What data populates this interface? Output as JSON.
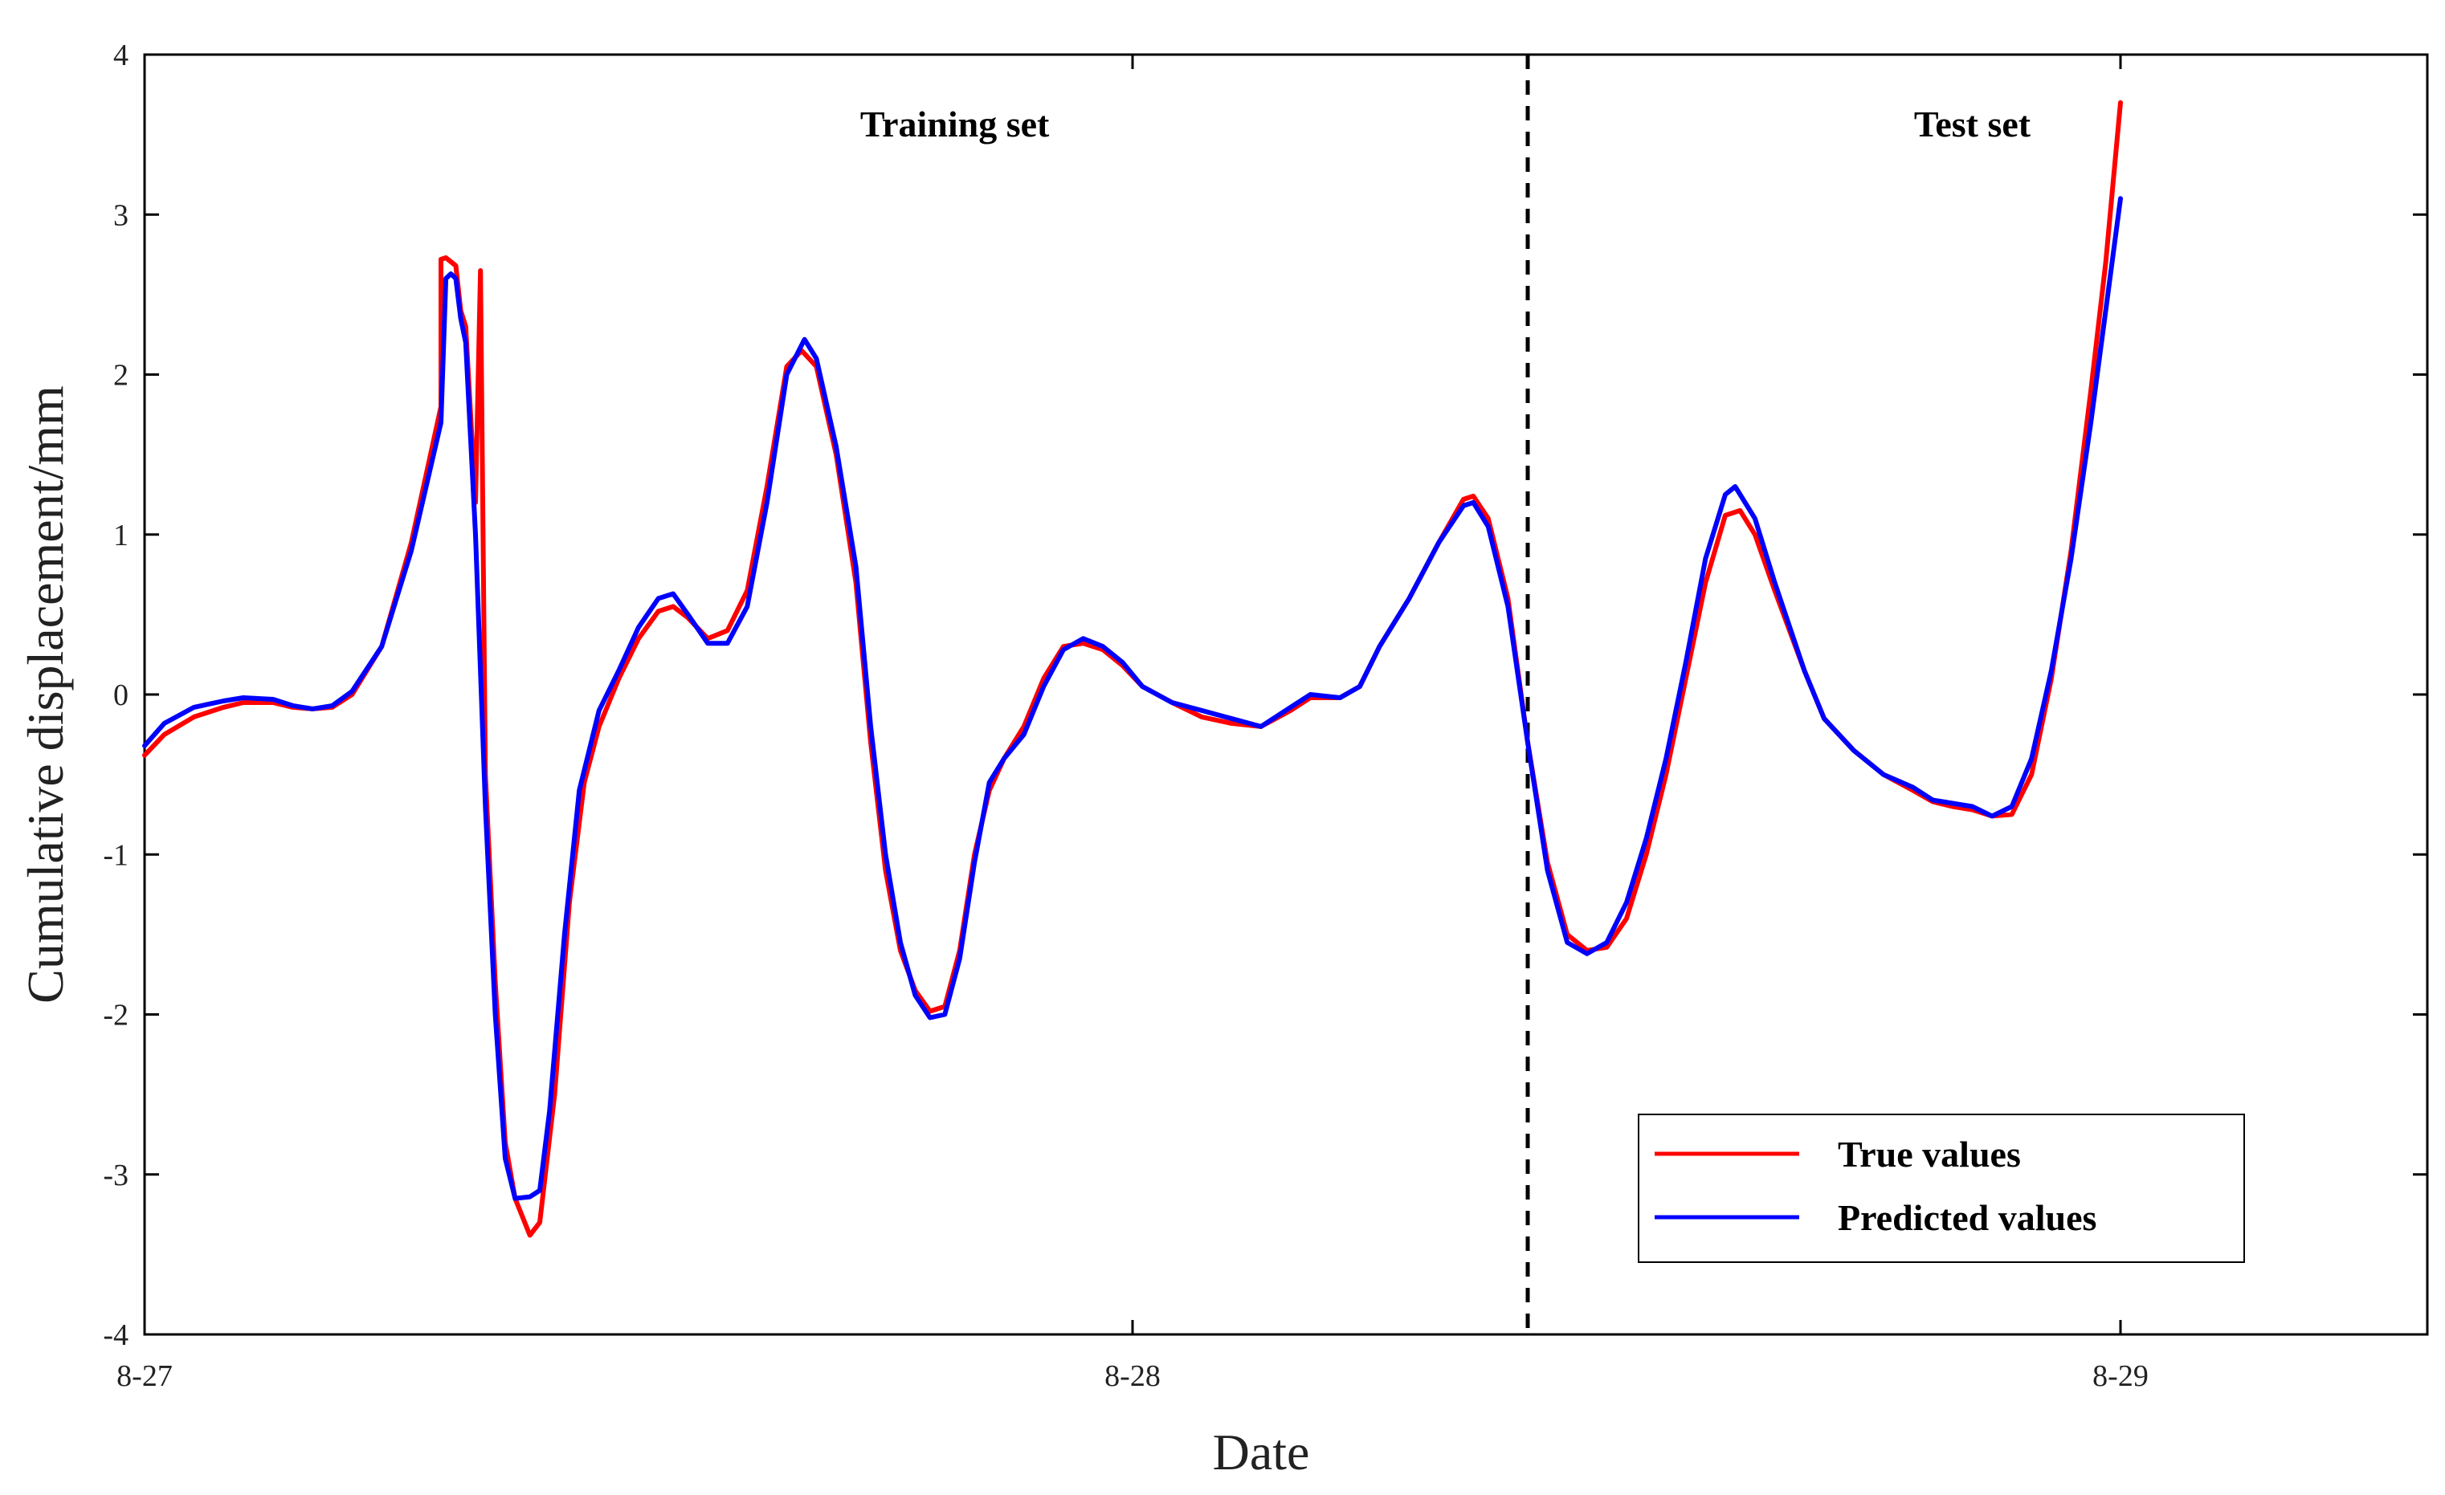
{
  "chart_data": {
    "type": "line",
    "xlabel": "Date",
    "ylabel": "Cumulative displacement/mm",
    "xlim": [
      0,
      2.3
    ],
    "ylim": [
      -4,
      4
    ],
    "x_ticks": [
      {
        "value": 0,
        "label": "8-27"
      },
      {
        "value": 1,
        "label": "8-28"
      },
      {
        "value": 2,
        "label": "8-29"
      }
    ],
    "y_ticks": [
      {
        "value": 4,
        "label": "4"
      },
      {
        "value": 3,
        "label": "3"
      },
      {
        "value": 2,
        "label": "2"
      },
      {
        "value": 1,
        "label": "1"
      },
      {
        "value": 0,
        "label": "0"
      },
      {
        "value": -1,
        "label": "-1"
      },
      {
        "value": -2,
        "label": "-2"
      },
      {
        "value": -3,
        "label": "-3"
      },
      {
        "value": -4,
        "label": "-4"
      }
    ],
    "split_x": 1.4,
    "regions": [
      {
        "label": "Training set",
        "x": 0.82
      },
      {
        "label": "Test set",
        "x": 1.85
      }
    ],
    "legend_position": "bottom-right",
    "series": [
      {
        "name": "True values",
        "color": "#ff0000",
        "points": [
          [
            0,
            -0.38
          ],
          [
            0.02,
            -0.25
          ],
          [
            0.05,
            -0.14
          ],
          [
            0.08,
            -0.08
          ],
          [
            0.1,
            -0.05
          ],
          [
            0.13,
            -0.05
          ],
          [
            0.15,
            -0.08
          ],
          [
            0.17,
            -0.09
          ],
          [
            0.19,
            -0.08
          ],
          [
            0.21,
            0.0
          ],
          [
            0.24,
            0.3
          ],
          [
            0.27,
            0.95
          ],
          [
            0.3,
            1.8
          ],
          [
            0.32,
            2.4
          ],
          [
            0.34,
            2.65
          ],
          [
            0.3,
            2.72
          ],
          [
            0.305,
            2.73
          ],
          [
            0.315,
            2.68
          ],
          [
            0.325,
            2.3
          ],
          [
            0.335,
            1.2
          ],
          [
            0.345,
            -0.5
          ],
          [
            0.355,
            -1.8
          ],
          [
            0.365,
            -2.8
          ],
          [
            0.375,
            -3.15
          ],
          [
            0.39,
            -3.38
          ],
          [
            0.4,
            -3.3
          ],
          [
            0.415,
            -2.5
          ],
          [
            0.43,
            -1.3
          ],
          [
            0.445,
            -0.55
          ],
          [
            0.46,
            -0.2
          ],
          [
            0.48,
            0.1
          ],
          [
            0.5,
            0.35
          ],
          [
            0.52,
            0.52
          ],
          [
            0.535,
            0.55
          ],
          [
            0.55,
            0.48
          ],
          [
            0.57,
            0.35
          ],
          [
            0.59,
            0.4
          ],
          [
            0.61,
            0.65
          ],
          [
            0.63,
            1.3
          ],
          [
            0.65,
            2.05
          ],
          [
            0.665,
            2.15
          ],
          [
            0.68,
            2.05
          ],
          [
            0.7,
            1.5
          ],
          [
            0.72,
            0.7
          ],
          [
            0.735,
            -0.3
          ],
          [
            0.75,
            -1.1
          ],
          [
            0.765,
            -1.6
          ],
          [
            0.78,
            -1.85
          ],
          [
            0.795,
            -1.98
          ],
          [
            0.81,
            -1.95
          ],
          [
            0.825,
            -1.6
          ],
          [
            0.84,
            -1.0
          ],
          [
            0.855,
            -0.6
          ],
          [
            0.87,
            -0.4
          ],
          [
            0.89,
            -0.2
          ],
          [
            0.91,
            0.1
          ],
          [
            0.93,
            0.3
          ],
          [
            0.95,
            0.32
          ],
          [
            0.97,
            0.28
          ],
          [
            0.99,
            0.18
          ],
          [
            1.01,
            0.05
          ],
          [
            1.04,
            -0.05
          ],
          [
            1.07,
            -0.14
          ],
          [
            1.1,
            -0.18
          ],
          [
            1.13,
            -0.2
          ],
          [
            1.16,
            -0.1
          ],
          [
            1.18,
            -0.02
          ],
          [
            1.21,
            -0.02
          ],
          [
            1.23,
            0.05
          ],
          [
            1.25,
            0.3
          ],
          [
            1.28,
            0.6
          ],
          [
            1.31,
            0.95
          ],
          [
            1.335,
            1.22
          ],
          [
            1.345,
            1.24
          ],
          [
            1.36,
            1.1
          ],
          [
            1.38,
            0.6
          ],
          [
            1.4,
            -0.3
          ],
          [
            1.42,
            -1.05
          ],
          [
            1.44,
            -1.5
          ],
          [
            1.46,
            -1.6
          ],
          [
            1.48,
            -1.58
          ],
          [
            1.5,
            -1.4
          ],
          [
            1.52,
            -1.0
          ],
          [
            1.54,
            -0.5
          ],
          [
            1.56,
            0.1
          ],
          [
            1.58,
            0.7
          ],
          [
            1.6,
            1.12
          ],
          [
            1.615,
            1.15
          ],
          [
            1.63,
            1.0
          ],
          [
            1.65,
            0.65
          ],
          [
            1.68,
            0.15
          ],
          [
            1.7,
            -0.15
          ],
          [
            1.73,
            -0.35
          ],
          [
            1.76,
            -0.5
          ],
          [
            1.79,
            -0.6
          ],
          [
            1.81,
            -0.67
          ],
          [
            1.83,
            -0.7
          ],
          [
            1.85,
            -0.72
          ],
          [
            1.87,
            -0.76
          ],
          [
            1.89,
            -0.75
          ],
          [
            1.91,
            -0.5
          ],
          [
            1.93,
            0.1
          ],
          [
            1.95,
            0.9
          ],
          [
            1.97,
            1.9
          ],
          [
            1.985,
            2.7
          ],
          [
            2.0,
            3.7
          ]
        ]
      },
      {
        "name": "Predicted values",
        "color": "#0000ff",
        "points": [
          [
            0,
            -0.32
          ],
          [
            0.02,
            -0.18
          ],
          [
            0.05,
            -0.08
          ],
          [
            0.08,
            -0.04
          ],
          [
            0.1,
            -0.02
          ],
          [
            0.13,
            -0.03
          ],
          [
            0.15,
            -0.07
          ],
          [
            0.17,
            -0.09
          ],
          [
            0.19,
            -0.07
          ],
          [
            0.21,
            0.02
          ],
          [
            0.24,
            0.3
          ],
          [
            0.27,
            0.9
          ],
          [
            0.3,
            1.7
          ],
          [
            0.32,
            2.35
          ],
          [
            0.305,
            2.6
          ],
          [
            0.31,
            2.63
          ],
          [
            0.315,
            2.6
          ],
          [
            0.325,
            2.2
          ],
          [
            0.335,
            1.0
          ],
          [
            0.345,
            -0.7
          ],
          [
            0.355,
            -2.0
          ],
          [
            0.365,
            -2.9
          ],
          [
            0.375,
            -3.15
          ],
          [
            0.39,
            -3.14
          ],
          [
            0.4,
            -3.1
          ],
          [
            0.41,
            -2.6
          ],
          [
            0.425,
            -1.5
          ],
          [
            0.44,
            -0.6
          ],
          [
            0.46,
            -0.1
          ],
          [
            0.48,
            0.15
          ],
          [
            0.5,
            0.42
          ],
          [
            0.52,
            0.6
          ],
          [
            0.535,
            0.63
          ],
          [
            0.55,
            0.5
          ],
          [
            0.57,
            0.32
          ],
          [
            0.59,
            0.32
          ],
          [
            0.61,
            0.55
          ],
          [
            0.63,
            1.2
          ],
          [
            0.65,
            2.0
          ],
          [
            0.668,
            2.22
          ],
          [
            0.68,
            2.1
          ],
          [
            0.7,
            1.55
          ],
          [
            0.72,
            0.8
          ],
          [
            0.735,
            -0.2
          ],
          [
            0.75,
            -1.0
          ],
          [
            0.765,
            -1.55
          ],
          [
            0.78,
            -1.88
          ],
          [
            0.795,
            -2.02
          ],
          [
            0.81,
            -2.0
          ],
          [
            0.825,
            -1.65
          ],
          [
            0.84,
            -1.05
          ],
          [
            0.855,
            -0.55
          ],
          [
            0.87,
            -0.4
          ],
          [
            0.89,
            -0.25
          ],
          [
            0.91,
            0.05
          ],
          [
            0.93,
            0.28
          ],
          [
            0.95,
            0.35
          ],
          [
            0.97,
            0.3
          ],
          [
            0.99,
            0.2
          ],
          [
            1.01,
            0.05
          ],
          [
            1.04,
            -0.05
          ],
          [
            1.07,
            -0.1
          ],
          [
            1.1,
            -0.15
          ],
          [
            1.13,
            -0.2
          ],
          [
            1.16,
            -0.08
          ],
          [
            1.18,
            0.0
          ],
          [
            1.21,
            -0.02
          ],
          [
            1.23,
            0.05
          ],
          [
            1.25,
            0.3
          ],
          [
            1.28,
            0.6
          ],
          [
            1.31,
            0.95
          ],
          [
            1.335,
            1.18
          ],
          [
            1.345,
            1.2
          ],
          [
            1.36,
            1.05
          ],
          [
            1.38,
            0.55
          ],
          [
            1.4,
            -0.3
          ],
          [
            1.42,
            -1.1
          ],
          [
            1.44,
            -1.55
          ],
          [
            1.46,
            -1.62
          ],
          [
            1.48,
            -1.55
          ],
          [
            1.5,
            -1.3
          ],
          [
            1.52,
            -0.9
          ],
          [
            1.54,
            -0.4
          ],
          [
            1.56,
            0.2
          ],
          [
            1.58,
            0.85
          ],
          [
            1.6,
            1.25
          ],
          [
            1.61,
            1.3
          ],
          [
            1.63,
            1.1
          ],
          [
            1.65,
            0.7
          ],
          [
            1.68,
            0.15
          ],
          [
            1.7,
            -0.15
          ],
          [
            1.73,
            -0.35
          ],
          [
            1.76,
            -0.5
          ],
          [
            1.79,
            -0.58
          ],
          [
            1.81,
            -0.66
          ],
          [
            1.83,
            -0.68
          ],
          [
            1.85,
            -0.7
          ],
          [
            1.87,
            -0.76
          ],
          [
            1.89,
            -0.7
          ],
          [
            1.91,
            -0.4
          ],
          [
            1.93,
            0.15
          ],
          [
            1.95,
            0.85
          ],
          [
            1.97,
            1.7
          ],
          [
            1.985,
            2.4
          ],
          [
            2.0,
            3.1
          ]
        ]
      }
    ]
  }
}
